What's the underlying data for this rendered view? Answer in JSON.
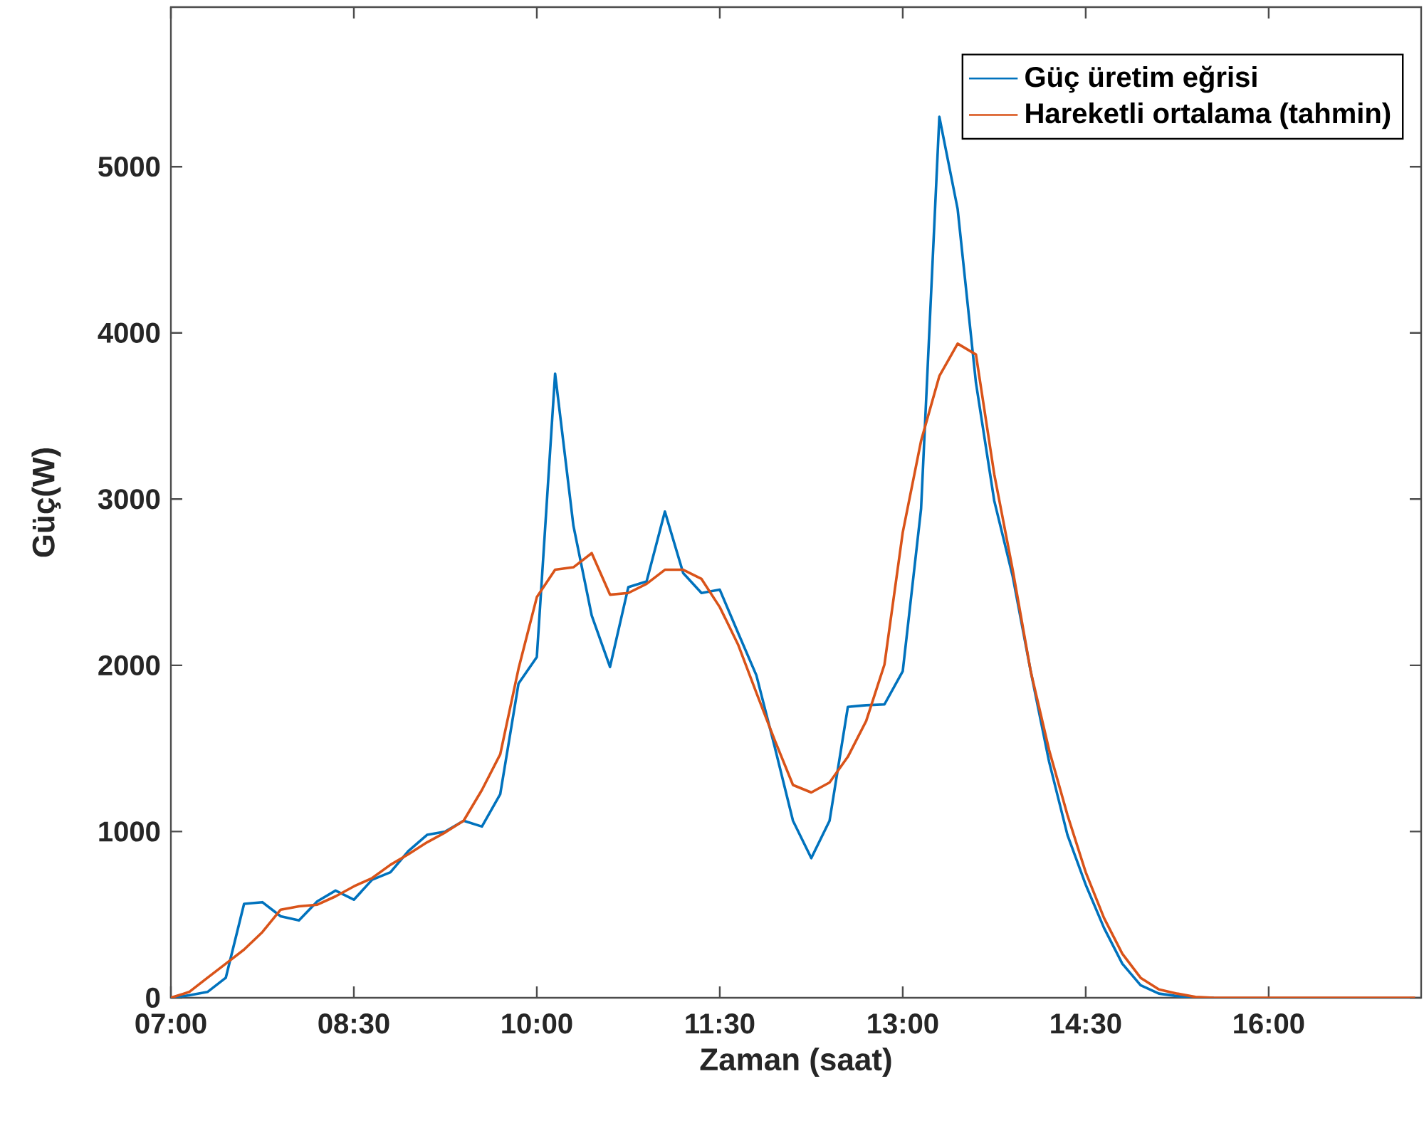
{
  "chart_data": {
    "type": "line",
    "xlabel": "Zaman (saat)",
    "ylabel": "Güç(W)",
    "x": [
      7,
      7.15,
      7.3,
      7.45,
      7.6,
      7.75,
      7.9,
      8.05,
      8.2,
      8.35,
      8.5,
      8.65,
      8.8,
      8.95,
      9.1,
      9.25,
      9.4,
      9.55,
      9.7,
      9.85,
      10,
      10.15,
      10.3,
      10.45,
      10.6,
      10.75,
      10.9,
      11.05,
      11.2,
      11.35,
      11.5,
      11.65,
      11.8,
      11.95,
      12.1,
      12.25,
      12.4,
      12.55,
      12.7,
      12.85,
      13,
      13.15,
      13.3,
      13.45,
      13.6,
      13.75,
      13.9,
      14.05,
      14.2,
      14.35,
      14.5,
      14.65,
      14.8,
      14.95,
      15.1,
      15.25,
      15.4,
      15.55,
      15.7,
      15.85,
      16,
      16.15,
      16.3,
      16.45,
      16.6,
      16.75,
      16.9,
      17.05,
      17.2
    ],
    "series": [
      {
        "name": "Güç üretim eğrisi",
        "color": "#0072bd",
        "values": [
          0,
          15,
          35,
          120,
          565,
          575,
          490,
          465,
          580,
          645,
          590,
          710,
          755,
          885,
          980,
          1000,
          1065,
          1030,
          1225,
          1890,
          2050,
          3755,
          2840,
          2300,
          1990,
          2470,
          2505,
          2925,
          2555,
          2435,
          2455,
          2195,
          1940,
          1510,
          1065,
          840,
          1065,
          1750,
          1760,
          1765,
          1965,
          2940,
          5300,
          4745,
          3700,
          2990,
          2540,
          1960,
          1420,
          980,
          680,
          420,
          205,
          75,
          25,
          10,
          0,
          0,
          null,
          null,
          null,
          null,
          null,
          null,
          null,
          null,
          null,
          null,
          null
        ]
      },
      {
        "name": "Hareketli ortalama (tahmin)",
        "color": "#d95319",
        "values": [
          0,
          35,
          120,
          205,
          290,
          395,
          530,
          550,
          560,
          610,
          670,
          720,
          800,
          865,
          935,
          995,
          1065,
          1250,
          1465,
          1980,
          2410,
          2575,
          2590,
          2675,
          2425,
          2435,
          2490,
          2575,
          2575,
          2520,
          2350,
          2125,
          1835,
          1550,
          1280,
          1235,
          1295,
          1450,
          1665,
          2005,
          2800,
          3350,
          3740,
          3935,
          3870,
          3150,
          2580,
          1960,
          1490,
          1100,
          755,
          480,
          265,
          120,
          50,
          25,
          5,
          0,
          0,
          0,
          0,
          0,
          0,
          0,
          0,
          0,
          0,
          0,
          0
        ]
      }
    ],
    "xlim": [
      7,
      17.25
    ],
    "ylim": [
      0,
      5960
    ],
    "xticks": [
      {
        "value": 7,
        "label": "07:00"
      },
      {
        "value": 8.5,
        "label": "08:30"
      },
      {
        "value": 10,
        "label": "10:00"
      },
      {
        "value": 11.5,
        "label": "11:30"
      },
      {
        "value": 13,
        "label": "13:00"
      },
      {
        "value": 14.5,
        "label": "14:30"
      },
      {
        "value": 16,
        "label": "16:00"
      }
    ],
    "yticks": [
      0,
      1000,
      2000,
      3000,
      4000,
      5000
    ],
    "legend": "top right",
    "grid": false,
    "line_style": "solid"
  }
}
